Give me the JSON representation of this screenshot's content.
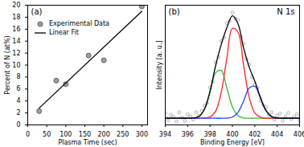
{
  "chart_data": [
    {
      "type": "scatter",
      "annotations": [
        "(a)"
      ],
      "xlabel": "Plasma Time (sec)",
      "ylabel": "Percent of N (at%)",
      "xlim": [
        0,
        315
      ],
      "xticks": [
        0,
        50,
        100,
        150,
        200,
        250,
        300
      ],
      "ylim": [
        0,
        20
      ],
      "yticks": [
        0,
        2,
        4,
        6,
        8,
        10,
        12,
        14,
        16,
        18,
        20
      ],
      "legend": "upper left",
      "series": [
        {
          "name": "Experimental Data",
          "type": "scatter",
          "marker": "circle",
          "color": "#a0a0a0",
          "x": [
            30,
            75,
            100,
            160,
            200,
            300
          ],
          "values": [
            2.3,
            7.4,
            6.8,
            11.6,
            10.8,
            19.8
          ]
        },
        {
          "name": "Linear Fit",
          "type": "line",
          "line_style": "solid",
          "color": "#000000",
          "x": [
            30,
            300
          ],
          "values": [
            2.8,
            19.0
          ]
        }
      ]
    },
    {
      "type": "line",
      "title": "N 1s",
      "annotations": [
        "(b)"
      ],
      "xlabel": "Binding Energy [eV]",
      "ylabel": "Intensity [a. u.]",
      "xlim": [
        394,
        406
      ],
      "xticks": [
        394,
        396,
        398,
        400,
        402,
        404,
        406
      ],
      "ylim": [
        -1,
        17
      ],
      "tick_labels": "x",
      "series": [
        {
          "type": "scatter",
          "marker": "circle",
          "color": "#999999",
          "x": [
            394,
            394.25,
            394.5,
            394.75,
            395,
            395.25,
            395.5,
            395.75,
            396,
            396.25,
            396.5,
            396.75,
            397,
            397.25,
            397.5,
            397.75,
            398,
            398.25,
            398.5,
            398.75,
            399,
            399.25,
            399.5,
            399.75,
            400,
            400.25,
            400.5,
            400.75,
            401,
            401.25,
            401.5,
            401.75,
            402,
            402.25,
            402.5,
            402.75,
            403,
            403.25,
            403.5,
            403.75,
            404,
            404.25,
            404.5,
            404.75,
            405,
            405.25,
            405.5,
            405.75,
            406
          ],
          "values": [
            0.8,
            -0.3,
            0.5,
            0.2,
            -0.5,
            0.9,
            0.1,
            -0.4,
            0.6,
            0.3,
            -0.2,
            0.9,
            0.4,
            1.1,
            1.9,
            2.3,
            4.6,
            5.5,
            8.4,
            9.2,
            11.6,
            12.1,
            14.3,
            14.6,
            15.9,
            15.0,
            14.8,
            12.3,
            11.2,
            8.9,
            8.1,
            6.2,
            5.1,
            4.6,
            2.6,
            2.0,
            1.7,
            0.5,
            0.9,
            -0.2,
            0.4,
            0.7,
            -0.4,
            0.3,
            0.8,
            -0.1,
            0.2,
            0.6,
            -0.3
          ]
        },
        {
          "type": "line",
          "color": "#33bb33",
          "x": [
            394,
            394.5,
            395,
            395.5,
            396,
            396.5,
            397,
            397.5,
            398,
            398.5,
            399,
            399.5,
            400,
            400.5,
            401,
            401.5,
            402,
            402.5,
            403,
            403.5,
            404,
            404.5,
            405,
            405.5,
            406
          ],
          "values": [
            0,
            0,
            0,
            0,
            0,
            0.03,
            0.27,
            1.34,
            3.9,
            6.84,
            7.2,
            4.55,
            1.72,
            0.39,
            0.05,
            0,
            0,
            0,
            0,
            0,
            0,
            0,
            0,
            0,
            0
          ]
        },
        {
          "type": "line",
          "color": "#ff2020",
          "x": [
            394,
            394.5,
            395,
            395.5,
            396,
            396.5,
            397,
            397.5,
            398,
            398.5,
            399,
            399.5,
            400,
            400.5,
            401,
            401.5,
            402,
            402.5,
            403,
            403.5,
            404,
            404.5,
            405,
            405.5,
            406
          ],
          "values": [
            0,
            0,
            0,
            0,
            0,
            0,
            0,
            0.02,
            0.19,
            1.07,
            3.89,
            9.05,
            13.51,
            12.92,
            7.93,
            3.12,
            0.79,
            0.13,
            0.01,
            0,
            0,
            0,
            0,
            0,
            0
          ]
        },
        {
          "type": "line",
          "color": "#2040ff",
          "x": [
            394,
            394.5,
            395,
            395.5,
            396,
            396.5,
            397,
            397.5,
            398,
            398.5,
            399,
            399.5,
            400,
            400.5,
            401,
            401.5,
            402,
            402.5,
            403,
            403.5,
            404,
            404.5,
            405,
            405.5,
            406
          ],
          "values": [
            0,
            0,
            0,
            0,
            0,
            0,
            0,
            0,
            0,
            0,
            0,
            0.02,
            0.18,
            0.89,
            2.6,
            4.56,
            4.8,
            3.03,
            1.15,
            0.26,
            0.04,
            0,
            0,
            0,
            0
          ]
        },
        {
          "type": "line",
          "color": "#000000",
          "x": [
            394,
            394.5,
            395,
            395.5,
            396,
            396.5,
            397,
            397.5,
            398,
            398.5,
            399,
            399.5,
            400,
            400.5,
            401,
            401.5,
            402,
            402.5,
            403,
            403.5,
            404,
            404.5,
            405,
            405.5,
            406
          ],
          "values": [
            0,
            0,
            0,
            0,
            0,
            0.03,
            0.27,
            1.36,
            4.09,
            7.91,
            11.09,
            13.62,
            15.41,
            14.2,
            10.58,
            7.68,
            5.59,
            3.16,
            1.16,
            0.26,
            0.04,
            0,
            0,
            0,
            0
          ]
        }
      ]
    }
  ]
}
